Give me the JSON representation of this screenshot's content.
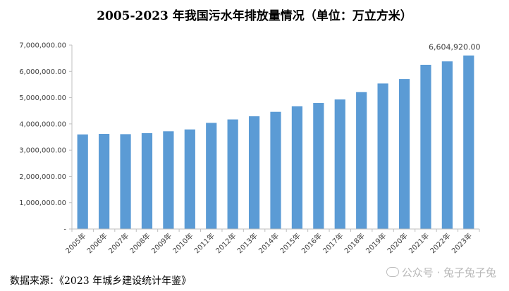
{
  "chart_data": {
    "type": "bar",
    "title": "2005-2023 年我国污水年排放量情况（单位：万立方米）",
    "xlabel": "",
    "ylabel": "",
    "ylim": [
      0,
      7000000
    ],
    "y_ticks": [
      {
        "value": 0,
        "label": "-"
      },
      {
        "value": 1000000,
        "label": "1,000,000.00"
      },
      {
        "value": 2000000,
        "label": "2,000,000.00"
      },
      {
        "value": 3000000,
        "label": "3,000,000.00"
      },
      {
        "value": 4000000,
        "label": "4,000,000.00"
      },
      {
        "value": 5000000,
        "label": "5,000,000.00"
      },
      {
        "value": 6000000,
        "label": "6,000,000.00"
      },
      {
        "value": 7000000,
        "label": "7,000,000.00"
      }
    ],
    "categories": [
      "2005年",
      "2006年",
      "2007年",
      "2008年",
      "2009年",
      "2010年",
      "2011年",
      "2012年",
      "2013年",
      "2014年",
      "2015年",
      "2016年",
      "2017年",
      "2018年",
      "2019年",
      "2020年",
      "2021年",
      "2022年",
      "2023年"
    ],
    "values": [
      3600000,
      3620000,
      3610000,
      3650000,
      3720000,
      3790000,
      4040000,
      4170000,
      4290000,
      4460000,
      4670000,
      4800000,
      4930000,
      5210000,
      5540000,
      5710000,
      6250000,
      6380000,
      6604920
    ],
    "data_labels": [
      {
        "index": 18,
        "text": "6,604,920.00"
      }
    ],
    "bar_color": "#5b9bd5",
    "grid": false
  },
  "source": "数据来源：《2023 年城乡建设统计年鉴》",
  "watermark": "公众号 · 兔子兔子兔"
}
